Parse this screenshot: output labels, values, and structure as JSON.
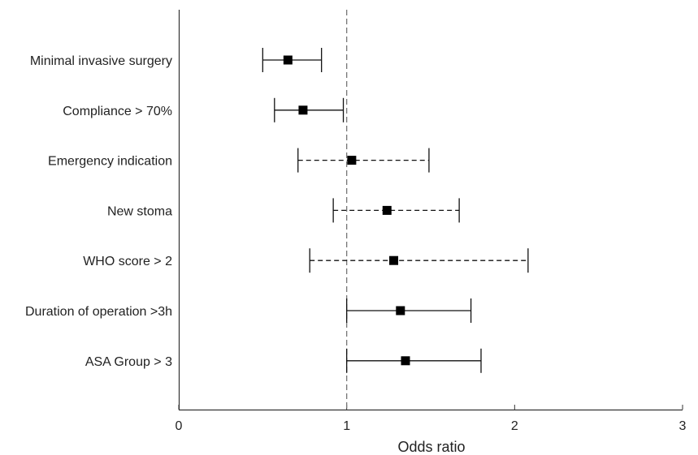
{
  "chart_data": {
    "type": "forest",
    "title": "",
    "xlabel": "Odds ratio",
    "ylabel": "",
    "xlim": [
      0,
      3
    ],
    "xticks": [
      "0",
      "1",
      "2",
      "3"
    ],
    "reference_line": 1,
    "grid": false,
    "rows": [
      {
        "label": "Minimal invasive surgery",
        "or": 0.65,
        "lower": 0.5,
        "upper": 0.85,
        "line_style": "solid"
      },
      {
        "label": "Compliance > 70%",
        "or": 0.74,
        "lower": 0.57,
        "upper": 0.98,
        "line_style": "solid"
      },
      {
        "label": "Emergency indication",
        "or": 1.03,
        "lower": 0.71,
        "upper": 1.49,
        "line_style": "dashed"
      },
      {
        "label": "New stoma",
        "or": 1.24,
        "lower": 0.92,
        "upper": 1.67,
        "line_style": "dashed"
      },
      {
        "label": "WHO score > 2",
        "or": 1.28,
        "lower": 0.78,
        "upper": 2.08,
        "line_style": "dashed"
      },
      {
        "label": "Duration of operation >3h",
        "or": 1.32,
        "lower": 1.0,
        "upper": 1.74,
        "line_style": "solid"
      },
      {
        "label": "ASA Group > 3",
        "or": 1.35,
        "lower": 1.0,
        "upper": 1.8,
        "line_style": "solid"
      }
    ]
  }
}
